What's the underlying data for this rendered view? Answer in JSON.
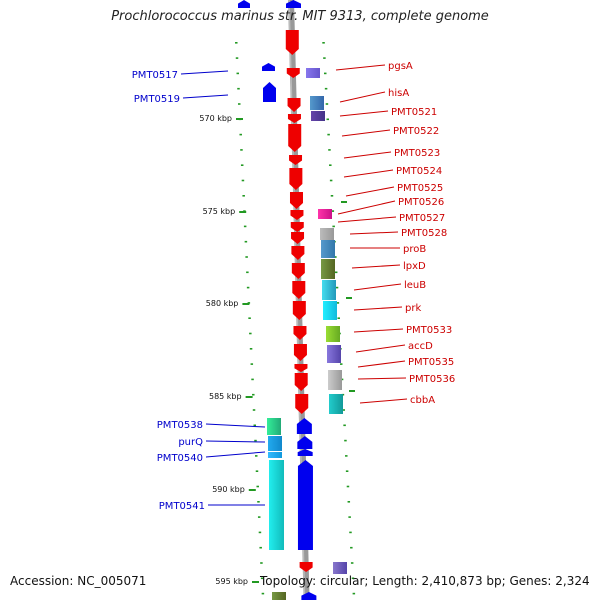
{
  "title": "Prochlorococcus marinus str. MIT 9313, complete genome",
  "accession": "Accession: NC_005071",
  "summary": "Topology: circular; Length: 2,410,873 bp; Genes: 2,324",
  "ruler_labels": [
    "570 kbp",
    "575 kbp",
    "580 kbp",
    "585 kbp",
    "590 kbp",
    "595 kbp"
  ],
  "colors": {
    "forward_label": "#0000cc",
    "reverse_label": "#cc0000",
    "forward_gene": "#0000ee",
    "reverse_gene": "#ee0000",
    "backbone": "#999999",
    "tick": "#229922"
  },
  "forward_labels": [
    "PMT0517",
    "PMT0519",
    "PMT0538",
    "purQ",
    "PMT0540",
    "PMT0541"
  ],
  "reverse_labels": [
    "pgsA",
    "hisA",
    "PMT0521",
    "PMT0522",
    "PMT0523",
    "PMT0524",
    "PMT0525",
    "PMT0526",
    "PMT0527",
    "PMT0528",
    "proB",
    "lpxD",
    "leuB",
    "prk",
    "PMT0533",
    "accD",
    "PMT0535",
    "PMT0536",
    "cbbA"
  ]
}
